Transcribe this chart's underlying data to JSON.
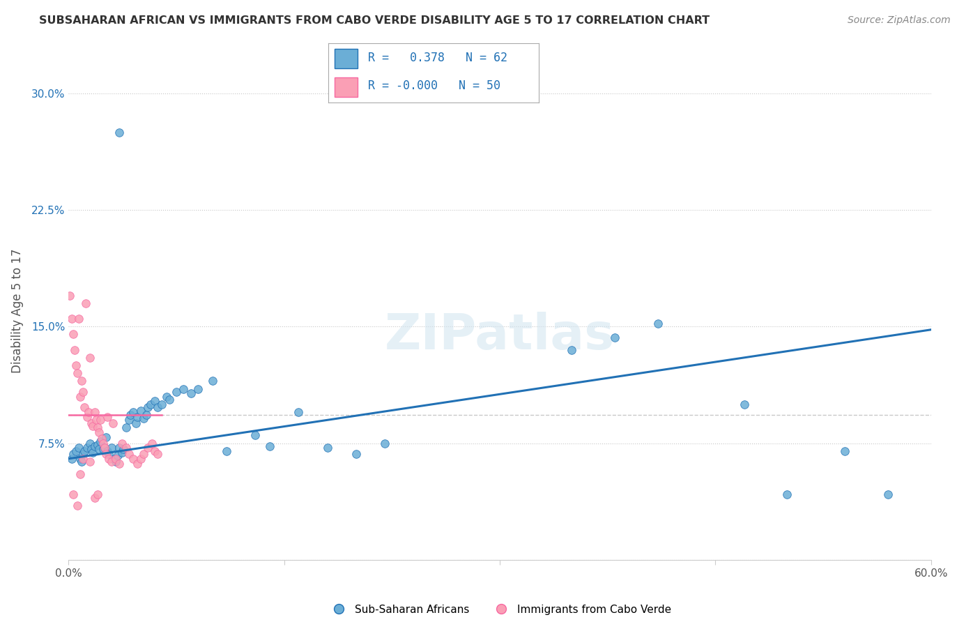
{
  "title": "SUBSAHARAN AFRICAN VS IMMIGRANTS FROM CABO VERDE DISABILITY AGE 5 TO 17 CORRELATION CHART",
  "source": "Source: ZipAtlas.com",
  "ylabel": "Disability Age 5 to 17",
  "xmin": 0.0,
  "xmax": 0.6,
  "ymin": 0.0,
  "ymax": 0.32,
  "yticks": [
    0.0,
    0.075,
    0.15,
    0.225,
    0.3
  ],
  "ytick_labels": [
    "",
    "7.5%",
    "15.0%",
    "22.5%",
    "30.0%"
  ],
  "xticks": [
    0.0,
    0.15,
    0.3,
    0.45,
    0.6
  ],
  "xtick_labels": [
    "0.0%",
    "",
    "",
    "",
    "60.0%"
  ],
  "legend_blue_r": "0.378",
  "legend_blue_n": "62",
  "legend_pink_r": "-0.000",
  "legend_pink_n": "50",
  "legend_label_blue": "Sub-Saharan Africans",
  "legend_label_pink": "Immigrants from Cabo Verde",
  "blue_color": "#6baed6",
  "pink_color": "#fa9fb5",
  "trendline_blue_color": "#2171b5",
  "trendline_pink_color": "#f768a1",
  "watermark": "ZIPatlas",
  "blue_scatter": [
    [
      0.002,
      0.065
    ],
    [
      0.003,
      0.068
    ],
    [
      0.005,
      0.07
    ],
    [
      0.007,
      0.072
    ],
    [
      0.008,
      0.065
    ],
    [
      0.009,
      0.063
    ],
    [
      0.01,
      0.068
    ],
    [
      0.011,
      0.07
    ],
    [
      0.013,
      0.072
    ],
    [
      0.015,
      0.075
    ],
    [
      0.016,
      0.071
    ],
    [
      0.017,
      0.069
    ],
    [
      0.018,
      0.073
    ],
    [
      0.02,
      0.074
    ],
    [
      0.021,
      0.071
    ],
    [
      0.022,
      0.076
    ],
    [
      0.024,
      0.071
    ],
    [
      0.025,
      0.072
    ],
    [
      0.026,
      0.079
    ],
    [
      0.027,
      0.07
    ],
    [
      0.028,
      0.068
    ],
    [
      0.03,
      0.072
    ],
    [
      0.032,
      0.065
    ],
    [
      0.033,
      0.063
    ],
    [
      0.034,
      0.067
    ],
    [
      0.035,
      0.072
    ],
    [
      0.037,
      0.069
    ],
    [
      0.038,
      0.071
    ],
    [
      0.04,
      0.085
    ],
    [
      0.042,
      0.09
    ],
    [
      0.043,
      0.093
    ],
    [
      0.045,
      0.095
    ],
    [
      0.047,
      0.088
    ],
    [
      0.048,
      0.092
    ],
    [
      0.05,
      0.096
    ],
    [
      0.052,
      0.091
    ],
    [
      0.054,
      0.093
    ],
    [
      0.055,
      0.098
    ],
    [
      0.057,
      0.1
    ],
    [
      0.06,
      0.102
    ],
    [
      0.062,
      0.098
    ],
    [
      0.065,
      0.1
    ],
    [
      0.068,
      0.105
    ],
    [
      0.07,
      0.103
    ],
    [
      0.075,
      0.108
    ],
    [
      0.08,
      0.11
    ],
    [
      0.085,
      0.107
    ],
    [
      0.09,
      0.11
    ],
    [
      0.1,
      0.115
    ],
    [
      0.11,
      0.07
    ],
    [
      0.13,
      0.08
    ],
    [
      0.14,
      0.073
    ],
    [
      0.16,
      0.095
    ],
    [
      0.18,
      0.072
    ],
    [
      0.2,
      0.068
    ],
    [
      0.22,
      0.075
    ],
    [
      0.035,
      0.275
    ],
    [
      0.35,
      0.135
    ],
    [
      0.38,
      0.143
    ],
    [
      0.41,
      0.152
    ],
    [
      0.47,
      0.1
    ],
    [
      0.5,
      0.042
    ],
    [
      0.54,
      0.07
    ],
    [
      0.57,
      0.042
    ]
  ],
  "pink_scatter": [
    [
      0.001,
      0.17
    ],
    [
      0.002,
      0.155
    ],
    [
      0.003,
      0.145
    ],
    [
      0.004,
      0.135
    ],
    [
      0.005,
      0.125
    ],
    [
      0.006,
      0.12
    ],
    [
      0.007,
      0.155
    ],
    [
      0.008,
      0.105
    ],
    [
      0.009,
      0.115
    ],
    [
      0.01,
      0.108
    ],
    [
      0.011,
      0.098
    ],
    [
      0.012,
      0.165
    ],
    [
      0.013,
      0.092
    ],
    [
      0.014,
      0.095
    ],
    [
      0.015,
      0.13
    ],
    [
      0.016,
      0.088
    ],
    [
      0.017,
      0.086
    ],
    [
      0.018,
      0.095
    ],
    [
      0.019,
      0.09
    ],
    [
      0.02,
      0.085
    ],
    [
      0.021,
      0.082
    ],
    [
      0.022,
      0.09
    ],
    [
      0.023,
      0.078
    ],
    [
      0.024,
      0.075
    ],
    [
      0.025,
      0.072
    ],
    [
      0.026,
      0.068
    ],
    [
      0.027,
      0.092
    ],
    [
      0.028,
      0.065
    ],
    [
      0.03,
      0.063
    ],
    [
      0.031,
      0.088
    ],
    [
      0.033,
      0.065
    ],
    [
      0.035,
      0.062
    ],
    [
      0.037,
      0.075
    ],
    [
      0.04,
      0.072
    ],
    [
      0.042,
      0.068
    ],
    [
      0.045,
      0.065
    ],
    [
      0.048,
      0.062
    ],
    [
      0.05,
      0.065
    ],
    [
      0.052,
      0.068
    ],
    [
      0.055,
      0.072
    ],
    [
      0.058,
      0.075
    ],
    [
      0.06,
      0.07
    ],
    [
      0.062,
      0.068
    ],
    [
      0.003,
      0.042
    ],
    [
      0.006,
      0.035
    ],
    [
      0.008,
      0.055
    ],
    [
      0.01,
      0.065
    ],
    [
      0.015,
      0.063
    ],
    [
      0.018,
      0.04
    ],
    [
      0.02,
      0.042
    ]
  ],
  "blue_trendline_x": [
    0.0,
    0.6
  ],
  "blue_trendline_y": [
    0.065,
    0.148
  ],
  "pink_trendline_x": [
    0.0,
    0.065
  ],
  "pink_trendline_y": [
    0.093,
    0.093
  ],
  "hline_y": 0.093,
  "background_color": "#ffffff",
  "grid_color": "#c8c8c8"
}
